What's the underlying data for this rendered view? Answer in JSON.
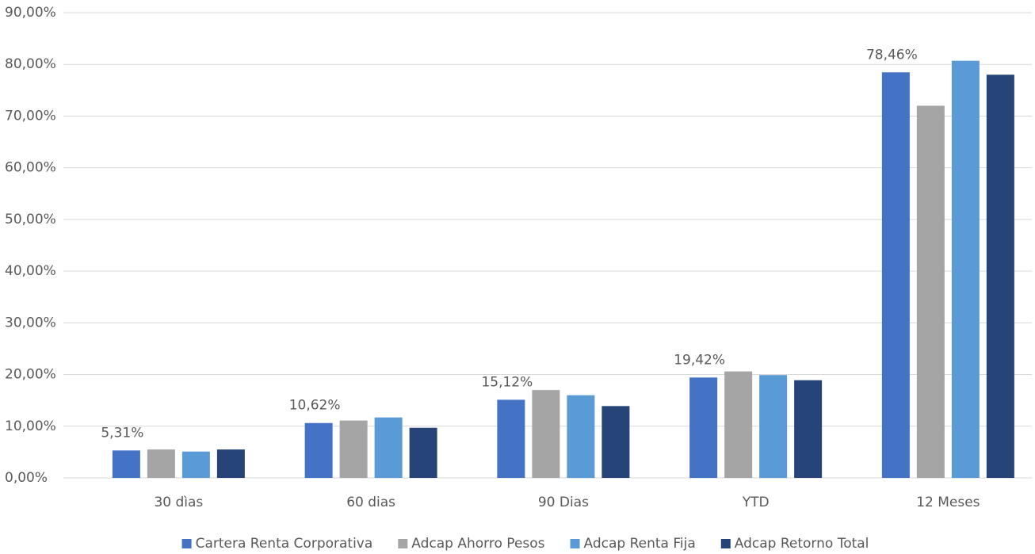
{
  "chart_data": {
    "type": "bar",
    "categories": [
      "30 dìas",
      "60 dias",
      "90 Dias",
      "YTD",
      "12 Meses"
    ],
    "series": [
      {
        "name": "Cartera Renta Corporativa",
        "color": "#4472c4",
        "values": [
          5.31,
          10.62,
          15.12,
          19.42,
          78.46
        ],
        "value_labels": [
          "5,31%",
          "10,62%",
          "15,12%",
          "19,42%",
          "78,46%"
        ]
      },
      {
        "name": "Adcap Ahorro Pesos",
        "color": "#a5a5a5",
        "values": [
          5.5,
          11.1,
          17.0,
          20.6,
          72.0
        ]
      },
      {
        "name": "Adcap Renta Fija",
        "color": "#5b9bd5",
        "values": [
          5.1,
          11.7,
          16.0,
          19.9,
          80.7
        ]
      },
      {
        "name": "Adcap Retorno Total",
        "color": "#264478",
        "values": [
          5.5,
          9.7,
          13.9,
          18.9,
          78.0
        ]
      }
    ],
    "ylim": [
      0,
      90
    ],
    "yticks": [
      {
        "value": 0,
        "label": "0,00%"
      },
      {
        "value": 10,
        "label": "10,00%"
      },
      {
        "value": 20,
        "label": "20,00%"
      },
      {
        "value": 30,
        "label": "30,00%"
      },
      {
        "value": 40,
        "label": "40,00%"
      },
      {
        "value": 50,
        "label": "50,00%"
      },
      {
        "value": 60,
        "label": "60,00%"
      },
      {
        "value": 70,
        "label": "70,00%"
      },
      {
        "value": 80,
        "label": "80,00%"
      },
      {
        "value": 90,
        "label": "90,00%"
      }
    ],
    "grid": true,
    "legend": "bottom"
  }
}
